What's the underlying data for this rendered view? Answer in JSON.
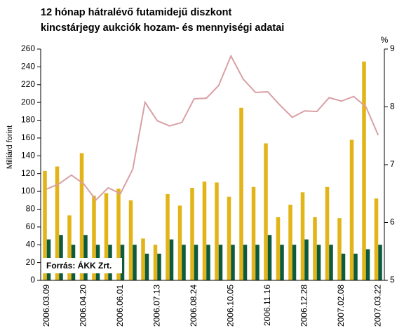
{
  "chart_data": {
    "type": "bar",
    "title": [
      "12 hónap hátralévő futamidejű diszkont",
      "kincstárjegy aukciók hozam- és mennyiségi adatai"
    ],
    "ylabel": "Milliárd forint",
    "y2label": "%",
    "annotation": "Forrás:  ÁKK Zrt.",
    "categories": [
      "2006.03.09",
      null,
      null,
      "2006.04.20",
      null,
      null,
      "2006.06.01",
      null,
      null,
      "2006.07.13",
      null,
      null,
      "2006.08.24",
      null,
      null,
      "2006.10.05",
      null,
      null,
      "2006.11.16",
      null,
      null,
      "2006.12.28",
      null,
      null,
      "2007.02.08",
      null,
      null,
      "2007.03.22"
    ],
    "series": [
      {
        "type": "bar",
        "color": "#e2b417",
        "values": [
          123,
          128,
          73,
          143,
          95,
          98,
          103,
          90,
          47,
          40,
          97,
          84,
          104,
          111,
          110,
          94,
          194,
          105,
          154,
          71,
          85,
          99,
          71,
          105,
          70,
          158,
          246,
          92
        ]
      },
      {
        "type": "bar",
        "color": "#0d5b3d",
        "values": [
          46,
          51,
          40,
          51,
          40,
          40,
          40,
          40,
          30,
          30,
          46,
          40,
          40,
          40,
          40,
          40,
          40,
          40,
          51,
          40,
          40,
          46,
          40,
          40,
          30,
          30,
          35,
          40
        ]
      },
      {
        "type": "line",
        "axis": "y2",
        "color": "#d9a0a6",
        "values": [
          6.58,
          6.67,
          6.82,
          6.67,
          6.39,
          6.6,
          6.5,
          6.92,
          8.08,
          7.76,
          7.67,
          7.73,
          8.14,
          8.15,
          8.37,
          8.88,
          8.48,
          8.25,
          8.26,
          8.03,
          7.82,
          7.93,
          7.92,
          8.16,
          8.1,
          8.18,
          8.0,
          7.51
        ]
      }
    ],
    "ylim": [
      0,
      260
    ],
    "yticks": [
      0,
      20,
      40,
      60,
      80,
      100,
      120,
      140,
      160,
      180,
      200,
      220,
      240,
      260
    ],
    "y2lim": [
      5,
      9
    ],
    "y2ticks": [
      5,
      6,
      7,
      8,
      9
    ],
    "grid": false
  }
}
